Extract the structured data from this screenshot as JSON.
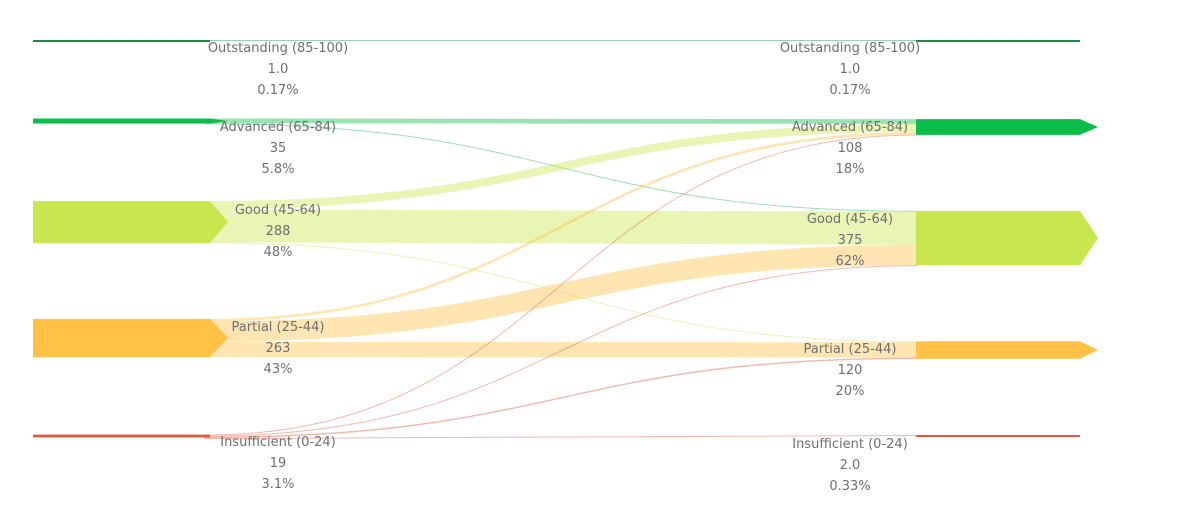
{
  "chart_data": {
    "type": "sankey",
    "left_column": [
      {
        "id": "L_outstanding",
        "label": "Outstanding (85-100)",
        "count": "1.0",
        "percent": "0.17%",
        "value": 1,
        "color": "#1e8c3c"
      },
      {
        "id": "L_advanced",
        "label": "Advanced (65-84)",
        "count": "35",
        "percent": "5.8%",
        "value": 35,
        "color": "#0dbd4a"
      },
      {
        "id": "L_good",
        "label": "Good (45-64)",
        "count": "288",
        "percent": "48%",
        "value": 288,
        "color": "#c8e64d"
      },
      {
        "id": "L_partial",
        "label": "Partial (25-44)",
        "count": "263",
        "percent": "43%",
        "value": 263,
        "color": "#ffc247"
      },
      {
        "id": "L_insufficient",
        "label": "Insufficient (0-24)",
        "count": "19",
        "percent": "3.1%",
        "value": 19,
        "color": "#e8553b"
      }
    ],
    "right_column": [
      {
        "id": "R_outstanding",
        "label": "Outstanding (85-100)",
        "count": "1.0",
        "percent": "0.17%",
        "value": 1,
        "color": "#1e8c3c"
      },
      {
        "id": "R_advanced",
        "label": "Advanced (65-84)",
        "count": "108",
        "percent": "18%",
        "value": 108,
        "color": "#0dbd4a"
      },
      {
        "id": "R_good",
        "label": "Good (45-64)",
        "count": "375",
        "percent": "62%",
        "value": 375,
        "color": "#c8e64d"
      },
      {
        "id": "R_partial",
        "label": "Partial (25-44)",
        "count": "120",
        "percent": "20%",
        "value": 120,
        "color": "#ffc247"
      },
      {
        "id": "R_insufficient",
        "label": "Insufficient (0-24)",
        "count": "2.0",
        "percent": "0.33%",
        "value": 2,
        "color": "#e8553b"
      }
    ],
    "flows": [
      {
        "source": "L_outstanding",
        "target": "R_outstanding",
        "value": 1
      },
      {
        "source": "L_advanced",
        "target": "R_advanced",
        "value": 33
      },
      {
        "source": "L_advanced",
        "target": "R_good",
        "value": 2
      },
      {
        "source": "L_good",
        "target": "R_advanced",
        "value": 55
      },
      {
        "source": "L_good",
        "target": "R_good",
        "value": 228
      },
      {
        "source": "L_good",
        "target": "R_partial",
        "value": 5
      },
      {
        "source": "L_partial",
        "target": "R_advanced",
        "value": 18
      },
      {
        "source": "L_partial",
        "target": "R_good",
        "value": 140
      },
      {
        "source": "L_partial",
        "target": "R_partial",
        "value": 105
      },
      {
        "source": "L_insufficient",
        "target": "R_good",
        "value": 5
      },
      {
        "source": "L_insufficient",
        "target": "R_partial",
        "value": 10
      },
      {
        "source": "L_insufficient",
        "target": "R_insufficient",
        "value": 2
      },
      {
        "source": "L_insufficient",
        "target": "R_advanced",
        "value": 2
      }
    ]
  }
}
